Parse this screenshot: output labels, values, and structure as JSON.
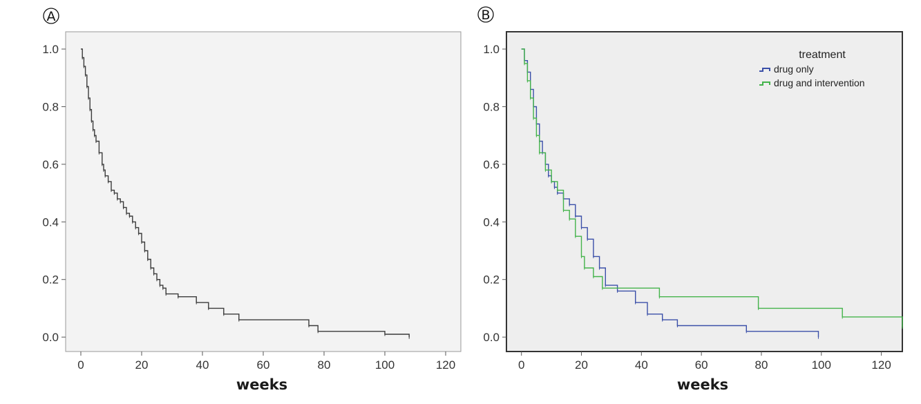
{
  "chart_data": [
    {
      "type": "line",
      "step": true,
      "panel_label": "A",
      "title": "",
      "xlabel": "weeks",
      "ylabel": "",
      "xlim": [
        -5,
        125
      ],
      "ylim": [
        -0.05,
        1.06
      ],
      "xticks": [
        0,
        20,
        40,
        60,
        80,
        100,
        120
      ],
      "yticks": [
        0.0,
        0.2,
        0.4,
        0.6,
        0.8,
        1.0
      ],
      "ytick_labels": [
        "0.0",
        "0.2",
        "0.4",
        "0.6",
        "0.8",
        "1.0"
      ],
      "grid": false,
      "legend": null,
      "background": "#f3f3f3",
      "series": [
        {
          "color": "#3a3a3a",
          "x": [
            0,
            0.5,
            1,
            1.5,
            2,
            2.5,
            3,
            3.5,
            4,
            4.5,
            5,
            6,
            7,
            7.5,
            8,
            9,
            10,
            11,
            12,
            13,
            14,
            15,
            16,
            17,
            18,
            19,
            20,
            21,
            22,
            23,
            24,
            25,
            26,
            27,
            28,
            32,
            38,
            42,
            47,
            52,
            75,
            78,
            100,
            108
          ],
          "y": [
            1.0,
            0.97,
            0.94,
            0.91,
            0.87,
            0.83,
            0.79,
            0.75,
            0.72,
            0.7,
            0.68,
            0.64,
            0.6,
            0.58,
            0.56,
            0.54,
            0.51,
            0.5,
            0.48,
            0.47,
            0.45,
            0.43,
            0.42,
            0.4,
            0.38,
            0.36,
            0.33,
            0.3,
            0.27,
            0.24,
            0.22,
            0.2,
            0.18,
            0.17,
            0.15,
            0.14,
            0.12,
            0.1,
            0.08,
            0.06,
            0.04,
            0.02,
            0.01,
            0.0
          ]
        }
      ]
    },
    {
      "type": "line",
      "step": true,
      "panel_label": "B",
      "title": "",
      "xlabel": "weeks",
      "ylabel": "",
      "xlim": [
        -5,
        127
      ],
      "ylim": [
        -0.05,
        1.06
      ],
      "xticks": [
        0,
        20,
        40,
        60,
        80,
        100,
        120
      ],
      "yticks": [
        0.0,
        0.2,
        0.4,
        0.6,
        0.8,
        1.0
      ],
      "ytick_labels": [
        "0.0",
        "0.2",
        "0.4",
        "0.6",
        "0.8",
        "1.0"
      ],
      "grid": false,
      "legend": {
        "title": "treatment",
        "placement": "top-right"
      },
      "background": "#eeeeee",
      "series": [
        {
          "name": "drug only",
          "color": "#3a4fa8",
          "x": [
            0,
            1,
            2,
            3,
            4,
            5,
            6,
            7,
            8,
            9,
            10,
            11,
            12,
            14,
            16,
            18,
            20,
            22,
            24,
            26,
            28,
            32,
            38,
            42,
            47,
            52,
            75,
            99
          ],
          "y": [
            1.0,
            0.96,
            0.92,
            0.86,
            0.8,
            0.74,
            0.68,
            0.64,
            0.6,
            0.56,
            0.54,
            0.52,
            0.5,
            0.48,
            0.46,
            0.42,
            0.38,
            0.34,
            0.28,
            0.24,
            0.18,
            0.16,
            0.12,
            0.08,
            0.06,
            0.04,
            0.02,
            0.0
          ]
        },
        {
          "name": "drug and intervention",
          "color": "#43b34a",
          "x": [
            0,
            1,
            2,
            3,
            4,
            5,
            6,
            8,
            10,
            12,
            14,
            16,
            18,
            20,
            21,
            24,
            27,
            46,
            79,
            107,
            127
          ],
          "y": [
            1.0,
            0.95,
            0.89,
            0.83,
            0.76,
            0.7,
            0.64,
            0.58,
            0.54,
            0.51,
            0.44,
            0.41,
            0.35,
            0.28,
            0.24,
            0.21,
            0.17,
            0.14,
            0.1,
            0.07,
            0.035
          ]
        }
      ]
    }
  ]
}
